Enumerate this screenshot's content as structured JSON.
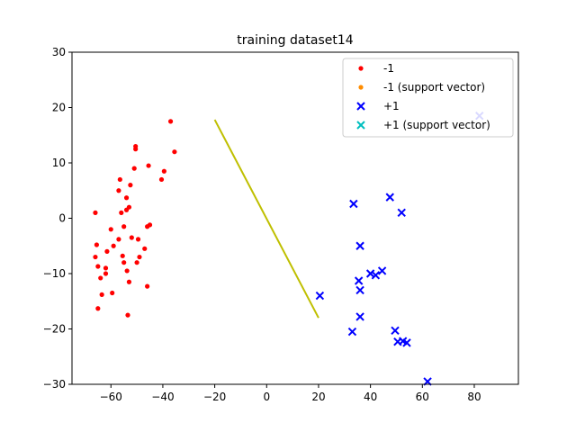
{
  "chart_data": {
    "type": "scatter",
    "title": "training dataset14",
    "xlabel": "",
    "ylabel": "",
    "xlim": [
      -75,
      97
    ],
    "ylim": [
      -30,
      30
    ],
    "xticks": [
      -60,
      -40,
      -20,
      0,
      20,
      40,
      60,
      80
    ],
    "yticks": [
      -30,
      -20,
      -10,
      0,
      10,
      20,
      30
    ],
    "xtick_labels": [
      "−60",
      "−40",
      "−20",
      "0",
      "20",
      "40",
      "60",
      "80"
    ],
    "ytick_labels": [
      "−30",
      "−20",
      "−10",
      "0",
      "10",
      "20",
      "30"
    ],
    "grid": false,
    "legend_position": "top-right",
    "series": [
      {
        "name": "-1",
        "marker": "dot",
        "color": "#ff0000",
        "points": [
          [
            -66,
            1
          ],
          [
            -65.5,
            -4.8
          ],
          [
            -66,
            -7
          ],
          [
            -65,
            -8.7
          ],
          [
            -64,
            -10.8
          ],
          [
            -65,
            -16.3
          ],
          [
            -63.5,
            -13.8
          ],
          [
            -62,
            -9
          ],
          [
            -62,
            -10
          ],
          [
            -61.5,
            -6
          ],
          [
            -60,
            -2
          ],
          [
            -59.5,
            -13.5
          ],
          [
            -59,
            -5
          ],
          [
            -57,
            5
          ],
          [
            -57,
            -3.8
          ],
          [
            -56.5,
            7
          ],
          [
            -56,
            1
          ],
          [
            -55.5,
            -6.8
          ],
          [
            -55,
            -8
          ],
          [
            -55,
            -1.5
          ],
          [
            -54,
            3.7
          ],
          [
            -54,
            1.5
          ],
          [
            -53.8,
            -9.5
          ],
          [
            -53.5,
            -17.5
          ],
          [
            -53,
            -11.5
          ],
          [
            -53,
            2
          ],
          [
            -52.5,
            6
          ],
          [
            -52,
            -3.5
          ],
          [
            -51,
            9
          ],
          [
            -50.5,
            13
          ],
          [
            -50.5,
            12.5
          ],
          [
            -50,
            -8
          ],
          [
            -49.5,
            -3.8
          ],
          [
            -49,
            -7
          ],
          [
            -47,
            -5.5
          ],
          [
            -46,
            -1.5
          ],
          [
            -46,
            -12.3
          ],
          [
            -45.5,
            9.5
          ],
          [
            -45,
            -1.2
          ],
          [
            -40.5,
            7
          ],
          [
            -39.5,
            8.5
          ],
          [
            -37,
            17.5
          ],
          [
            -35.5,
            12
          ]
        ]
      },
      {
        "name": "-1 (support vector)",
        "marker": "dot",
        "color": "#ff8c00",
        "points": []
      },
      {
        "name": "+1",
        "marker": "x",
        "color": "#0000ff",
        "points": [
          [
            20.5,
            -14
          ],
          [
            33,
            -20.5
          ],
          [
            33.5,
            2.6
          ],
          [
            35.5,
            -11.3
          ],
          [
            36,
            -5
          ],
          [
            36,
            -13
          ],
          [
            36,
            -17.8
          ],
          [
            40,
            -10
          ],
          [
            42,
            -10.3
          ],
          [
            44.5,
            -9.5
          ],
          [
            47.5,
            3.8
          ],
          [
            49.5,
            -20.3
          ],
          [
            50.5,
            -22.3
          ],
          [
            52,
            1
          ],
          [
            52.5,
            -22.2
          ],
          [
            54,
            -22.5
          ],
          [
            62,
            -29.5
          ],
          [
            82,
            18.5
          ]
        ]
      },
      {
        "name": "+1 (support vector)",
        "marker": "x",
        "color": "#00bfbf",
        "points": []
      }
    ],
    "separator_line": {
      "color": "#bfbf00",
      "points": [
        [
          -20,
          17.8
        ],
        [
          20,
          -18
        ]
      ]
    }
  }
}
